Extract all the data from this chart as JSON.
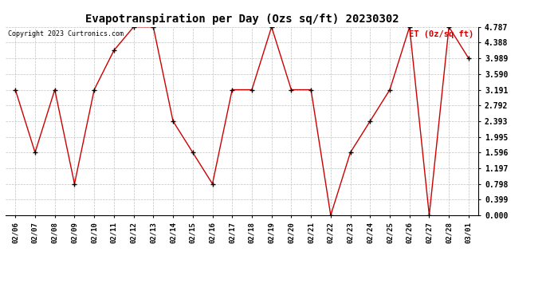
{
  "title": "Evapotranspiration per Day (Ozs sq/ft) 20230302",
  "dates": [
    "02/06",
    "02/07",
    "02/08",
    "02/09",
    "02/10",
    "02/11",
    "02/12",
    "02/13",
    "02/14",
    "02/15",
    "02/16",
    "02/17",
    "02/18",
    "02/19",
    "02/20",
    "02/21",
    "02/22",
    "02/23",
    "02/24",
    "02/25",
    "02/26",
    "02/27",
    "02/28",
    "03/01"
  ],
  "values": [
    3.191,
    1.596,
    3.191,
    0.798,
    3.191,
    4.189,
    4.787,
    4.787,
    2.393,
    1.596,
    0.798,
    3.191,
    3.191,
    4.787,
    3.191,
    3.191,
    0.0,
    1.596,
    2.393,
    3.191,
    4.787,
    0.0,
    4.787,
    3.989
  ],
  "line_color": "#cc0000",
  "marker_color": "#000000",
  "background_color": "#ffffff",
  "grid_color": "#bbbbbb",
  "ylabel": "ET (0z/sq ft)",
  "ylabel_color": "#cc0000",
  "copyright_text": "Copyright 2023 Curtronics.com",
  "ylim": [
    0.0,
    4.787
  ],
  "yticks": [
    0.0,
    0.399,
    0.798,
    1.197,
    1.596,
    1.995,
    2.393,
    2.792,
    3.191,
    3.59,
    3.989,
    4.388,
    4.787
  ],
  "figwidth": 6.9,
  "figheight": 3.75,
  "dpi": 100
}
